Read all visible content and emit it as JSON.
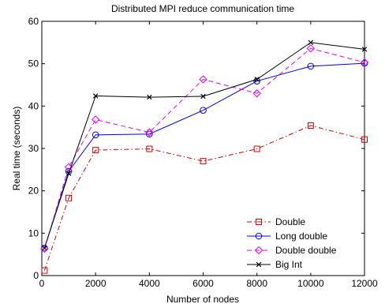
{
  "chart_data": {
    "type": "line",
    "title": "Distributed MPI reduce communication time",
    "xlabel": "Number of nodes",
    "ylabel": "Real time (seconds)",
    "xlim": [
      0,
      12000
    ],
    "ylim": [
      0,
      60
    ],
    "xticks": [
      0,
      2000,
      4000,
      6000,
      8000,
      10000,
      12000
    ],
    "yticks": [
      0,
      10,
      20,
      30,
      40,
      50,
      60
    ],
    "grid": false,
    "legend_position": "bottom-right",
    "series": [
      {
        "name": "Double",
        "color": "#e00000",
        "dash": "dash-dot",
        "marker": "square",
        "x": [
          100,
          1000,
          2000,
          4000,
          6000,
          8000,
          10000,
          12000
        ],
        "y": [
          1.2,
          18.3,
          29.6,
          29.9,
          27.0,
          29.9,
          35.4,
          32.1
        ]
      },
      {
        "name": "Long double",
        "color": "#0000ee",
        "dash": "solid",
        "marker": "circle",
        "x": [
          100,
          1000,
          2000,
          4000,
          6000,
          8000,
          10000,
          12000
        ],
        "y": [
          6.5,
          24.6,
          33.2,
          33.4,
          39.0,
          45.9,
          49.4,
          50.1
        ]
      },
      {
        "name": "Double double",
        "color": "#ee00ee",
        "dash": "dashed",
        "marker": "diamond",
        "x": [
          100,
          1000,
          2000,
          4000,
          6000,
          8000,
          10000,
          12000
        ],
        "y": [
          6.3,
          25.6,
          36.8,
          33.8,
          46.3,
          43.0,
          53.6,
          50.3
        ]
      },
      {
        "name": "Big Int",
        "color": "#000000",
        "dash": "solid",
        "marker": "x",
        "x": [
          100,
          1000,
          2000,
          4000,
          6000,
          8000,
          10000,
          12000
        ],
        "y": [
          6.5,
          24.1,
          42.4,
          42.1,
          42.3,
          46.3,
          55.0,
          53.4
        ]
      }
    ]
  }
}
